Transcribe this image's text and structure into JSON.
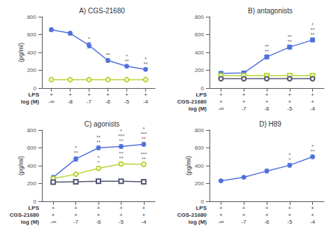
{
  "chart_data": [
    {
      "type": "line",
      "title": "A) CGS-21680",
      "ylabel": "(pg/ml)",
      "categories": [
        null,
        null,
        null,
        null,
        null,
        null
      ],
      "series": [
        {
          "marker": "filled_circle",
          "values": [
            655,
            615,
            480,
            310,
            245,
            210
          ],
          "errors": [
            20,
            20,
            30,
            20,
            15,
            15
          ],
          "stars": [
            null,
            null,
            "*",
            "**",
            "*\n**",
            "*\n**"
          ]
        },
        {
          "marker": "open_circle",
          "values": [
            95,
            95,
            95,
            95,
            95,
            95
          ],
          "errors": [
            5,
            5,
            5,
            5,
            5,
            5
          ]
        }
      ],
      "x_rows": [
        {
          "label": "LPS",
          "labels": [
            "+",
            "+",
            "+",
            "+",
            "+",
            "+"
          ]
        },
        {
          "label": "log (M)",
          "labels": [
            "-∞",
            "-8",
            "-7",
            "-6",
            "-5",
            "-4"
          ]
        }
      ],
      "ylim": [
        0,
        800
      ],
      "yticks": [
        0,
        200,
        400,
        600,
        800
      ],
      "grid": false
    },
    {
      "type": "line",
      "title": "B) antagonists",
      "categories": [
        null,
        null,
        null,
        null,
        null
      ],
      "series": [
        {
          "marker": "filled_square",
          "values": [
            165,
            170,
            350,
            460,
            540
          ],
          "errors": [
            10,
            10,
            20,
            15,
            15
          ],
          "stars": [
            null,
            null,
            "**\n**",
            "**\n**",
            "*\n**\n**"
          ]
        },
        {
          "marker": "open_square",
          "values": [
            140,
            140,
            140,
            140,
            140
          ],
          "errors": [
            5,
            5,
            5,
            5,
            5
          ]
        },
        {
          "marker": "open_circle",
          "values": [
            105,
            105,
            105,
            105,
            105
          ],
          "errors": [
            5,
            5,
            5,
            5,
            5
          ]
        }
      ],
      "x_rows": [
        {
          "label": "LPS",
          "labels": [
            "+",
            "+",
            "+",
            "+",
            "+"
          ]
        },
        {
          "label": "CGS-21680",
          "labels": [
            "+",
            "+",
            "+",
            "+",
            "+"
          ]
        },
        {
          "label": "log (M)",
          "labels": [
            "-∞",
            "-7",
            "-6",
            "-5",
            "-4"
          ]
        }
      ],
      "ylim": [
        0,
        800
      ],
      "yticks": [
        0,
        200,
        400,
        600,
        800
      ],
      "grid": false
    },
    {
      "type": "line",
      "title": "C) agonists",
      "ylabel": "(pg/ml)",
      "categories": [
        null,
        null,
        null,
        null,
        null
      ],
      "series": [
        {
          "marker": "filled_circle",
          "values": [
            270,
            475,
            600,
            615,
            640
          ],
          "errors": [
            15,
            25,
            20,
            20,
            20
          ],
          "stars": [
            null,
            "*\n**",
            "**\n**",
            "*\n***\n**",
            "*\n***\n**"
          ]
        },
        {
          "marker": "open_circle",
          "values": [
            255,
            305,
            370,
            420,
            415
          ],
          "errors": [
            15,
            15,
            20,
            20,
            20
          ],
          "stars": [
            null,
            null,
            "*\n*",
            "**\n**",
            "***\n**"
          ]
        },
        {
          "marker": "open_square",
          "values": [
            215,
            220,
            225,
            225,
            220
          ],
          "errors": [
            8,
            8,
            8,
            8,
            8
          ]
        }
      ],
      "x_rows": [
        {
          "label": "LPS",
          "labels": [
            "+",
            "+",
            "+",
            "+",
            "+"
          ]
        },
        {
          "label": "CGS-21680",
          "labels": [
            "+",
            "+",
            "+",
            "+",
            "+"
          ]
        },
        {
          "label": "log (M)",
          "labels": [
            "-∞",
            "-7",
            "-6",
            "-5",
            "-4"
          ]
        }
      ],
      "ylim": [
        0,
        800
      ],
      "yticks": [
        0,
        200,
        400,
        600,
        800
      ],
      "grid": false
    },
    {
      "type": "line",
      "title": "D) H89",
      "ylabel": "(pg/ml)",
      "categories": [
        null,
        null,
        null,
        null,
        null
      ],
      "series": [
        {
          "marker": "filled_circle",
          "values": [
            230,
            270,
            340,
            405,
            500
          ],
          "errors": [
            15,
            15,
            20,
            20,
            20
          ],
          "stars": [
            null,
            null,
            null,
            "*\n*",
            "*\n**"
          ]
        }
      ],
      "x_rows": [
        {
          "label": "LPS",
          "labels": [
            "+",
            "+",
            "+",
            "+",
            "+"
          ]
        },
        {
          "label": "CGS-21680",
          "labels": [
            "+",
            "+",
            "+",
            "+",
            "+"
          ]
        },
        {
          "label": "log (M)",
          "labels": [
            "-∞",
            "-7",
            "-6",
            "-5",
            "-4"
          ]
        }
      ],
      "ylim": [
        0,
        800
      ],
      "yticks": [
        0,
        200,
        400,
        600,
        800
      ],
      "grid": false
    }
  ]
}
